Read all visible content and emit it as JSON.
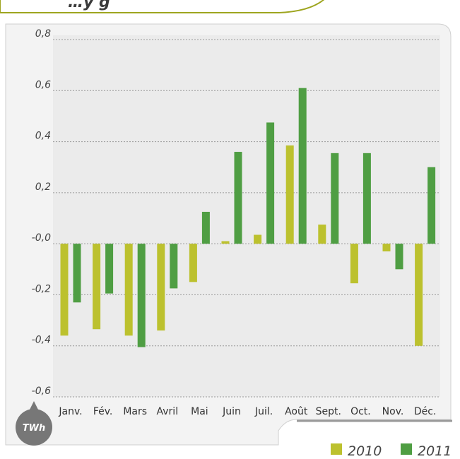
{
  "chart_data": {
    "type": "bar",
    "title_fragment": "…y g",
    "unit_label": "TWh",
    "categories": [
      "Janv.",
      "Fév.",
      "Mars",
      "Avril",
      "Mai",
      "Juin",
      "Juil.",
      "Août",
      "Sept.",
      "Oct.",
      "Nov.",
      "Déc."
    ],
    "series": [
      {
        "name": "2010",
        "values": [
          -0.36,
          -0.335,
          -0.36,
          -0.34,
          -0.15,
          0.01,
          0.035,
          0.385,
          0.075,
          -0.155,
          -0.03,
          -0.4
        ]
      },
      {
        "name": "2011",
        "values": [
          -0.23,
          -0.195,
          -0.405,
          -0.175,
          0.125,
          0.36,
          0.475,
          0.61,
          0.355,
          0.355,
          -0.1,
          0.3
        ]
      }
    ],
    "ylim": [
      -0.6,
      0.8
    ],
    "yticks": [
      0.8,
      0.6,
      0.4,
      0.2,
      0.0,
      -0.2,
      -0.4,
      -0.6
    ],
    "ytick_labels": [
      "0,8",
      "0,6",
      "0,4",
      "0,2",
      "-0,0",
      "-0,2",
      "-0,4",
      "-0,6"
    ],
    "grid": true,
    "legend_position": "bottom-right",
    "colors": {
      "2010": "#bcc12e",
      "2011": "#4f9e43",
      "plot_bg": "#ebebeb",
      "frame_border": "#9ea51f",
      "grid": "#9a9a9a",
      "unit_badge": "#777777"
    }
  }
}
